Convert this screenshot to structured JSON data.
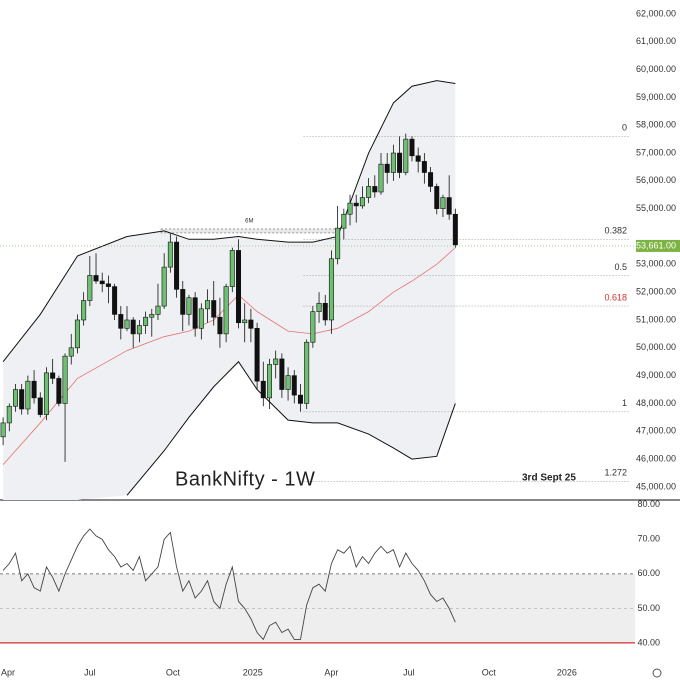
{
  "chart_data": {
    "type": "candlestick",
    "title": "BankNifty - 1W",
    "annotation": "3rd Sept 25",
    "xlim": [
      -0.5,
      102
    ],
    "xticks": [
      {
        "value": 0.8,
        "label": "Apr"
      },
      {
        "value": 14,
        "label": "Jul"
      },
      {
        "value": 27.4,
        "label": "Oct"
      },
      {
        "value": 40.3,
        "label": "2025"
      },
      {
        "value": 53,
        "label": "Apr"
      },
      {
        "value": 65.5,
        "label": "Jul"
      },
      {
        "value": 78.4,
        "label": "Oct"
      },
      {
        "value": 91,
        "label": "2026"
      }
    ],
    "ylim": [
      44530,
      62500
    ],
    "yticks": [
      {
        "value": 45000,
        "label": "45,000.00"
      },
      {
        "value": 46000,
        "label": "46,000.00"
      },
      {
        "value": 47000,
        "label": "47,000.00"
      },
      {
        "value": 48000,
        "label": "48,000.00"
      },
      {
        "value": 49000,
        "label": "49,000.00"
      },
      {
        "value": 50000,
        "label": "50,000.00"
      },
      {
        "value": 51000,
        "label": "51,000.00"
      },
      {
        "value": 52000,
        "label": "52,000.00"
      },
      {
        "value": 53000,
        "label": "53,000.00"
      },
      {
        "value": 55000,
        "label": "55,000.00"
      },
      {
        "value": 56000,
        "label": "56,000.00"
      },
      {
        "value": 57000,
        "label": "57,000.00"
      },
      {
        "value": 58000,
        "label": "58,000.00"
      },
      {
        "value": 59000,
        "label": "59,000.00"
      },
      {
        "value": 60000,
        "label": "60,000.00"
      },
      {
        "value": 61000,
        "label": "61,000.00"
      },
      {
        "value": 62000,
        "label": "62,000.00"
      }
    ],
    "up_color": "#6fbf73",
    "down_color": "#111111",
    "open": [
      46800,
      47300,
      47900,
      48500,
      47800,
      48800,
      48200,
      47600,
      49100,
      48900,
      48000,
      49700,
      50000,
      51000,
      51700,
      52600,
      52400,
      52300,
      52200,
      51200,
      50700,
      51000,
      50500,
      50800,
      51100,
      51200,
      51500,
      52900,
      53800,
      52100,
      51200,
      51800,
      50700,
      51400,
      51700,
      51100,
      50500,
      52200,
      53500,
      50900,
      51000,
      50700,
      48800,
      48200,
      49400,
      49600,
      48500,
      49000,
      48300,
      48000,
      50200,
      51300,
      51600,
      51000,
      53200,
      54300,
      54800,
      55200,
      55100,
      55400,
      55800,
      55600,
      56600,
      56300,
      57000,
      56300,
      57500,
      56900,
      56700,
      56300,
      55800,
      55000,
      55400,
      54800
    ],
    "high": [
      47500,
      48000,
      48700,
      48700,
      49000,
      49200,
      48400,
      49300,
      49600,
      49000,
      49800,
      50500,
      51200,
      52000,
      53300,
      53400,
      52700,
      52600,
      52300,
      51500,
      51500,
      51100,
      51000,
      51300,
      51400,
      52300,
      53400,
      54100,
      54000,
      52400,
      51900,
      52000,
      51600,
      52100,
      52400,
      51800,
      52300,
      53600,
      53900,
      51600,
      51400,
      50900,
      49500,
      49600,
      49900,
      49800,
      49300,
      49200,
      48700,
      50300,
      51500,
      52000,
      51900,
      53500,
      55100,
      55000,
      55500,
      55500,
      55800,
      56100,
      56200,
      57000,
      57000,
      57300,
      57600,
      57700,
      57600,
      57200,
      57000,
      56500,
      55900,
      55500,
      56200,
      55000
    ],
    "low": [
      46500,
      47000,
      47700,
      47600,
      47600,
      48000,
      47500,
      47400,
      48700,
      47900,
      45900,
      49400,
      49800,
      50800,
      51500,
      52300,
      52000,
      51600,
      51000,
      50300,
      50600,
      50000,
      50200,
      50500,
      50400,
      51000,
      51400,
      52700,
      51800,
      50600,
      50800,
      50400,
      50300,
      50900,
      50800,
      50000,
      50200,
      52000,
      50700,
      50200,
      50200,
      48500,
      47900,
      47800,
      48900,
      48200,
      48100,
      48000,
      47700,
      47800,
      50000,
      50900,
      50800,
      50500,
      53000,
      53900,
      54400,
      54500,
      55000,
      55200,
      55400,
      55500,
      55900,
      56000,
      56100,
      56200,
      56700,
      56300,
      55900,
      55600,
      54800,
      54700,
      54600,
      53600
    ],
    "close": [
      47300,
      47900,
      48500,
      47800,
      48800,
      48200,
      47600,
      49100,
      48900,
      48000,
      49700,
      50000,
      51000,
      51700,
      52600,
      52400,
      52300,
      52200,
      51200,
      50700,
      51000,
      50500,
      50800,
      51100,
      51200,
      51500,
      52900,
      53800,
      52100,
      51200,
      51800,
      50700,
      51400,
      51700,
      51100,
      50500,
      52200,
      53500,
      50900,
      51000,
      50700,
      48800,
      48200,
      49400,
      49600,
      48500,
      49000,
      48300,
      48000,
      50200,
      51300,
      51600,
      51000,
      53200,
      54300,
      54800,
      55200,
      55100,
      55400,
      55800,
      55600,
      56600,
      56300,
      57000,
      56300,
      57500,
      56900,
      56700,
      56300,
      55800,
      55000,
      55400,
      54800,
      53700
    ],
    "bands": {
      "x": [
        0,
        6,
        12,
        20,
        26,
        30,
        34,
        38,
        41,
        46,
        50,
        54,
        59,
        63,
        66,
        70,
        73
      ],
      "upper": [
        49500,
        51200,
        53300,
        54000,
        54200,
        53900,
        53900,
        54000,
        53900,
        53800,
        53800,
        54000,
        57000,
        58800,
        59400,
        59600,
        59500
      ],
      "middle": [
        45800,
        47300,
        48900,
        49900,
        50400,
        50600,
        51000,
        51900,
        51300,
        50600,
        50500,
        50700,
        51300,
        52000,
        52400,
        53000,
        53600
      ],
      "lower": [
        null,
        null,
        null,
        44700,
        46300,
        47500,
        48600,
        49500,
        48500,
        47400,
        47300,
        47300,
        46900,
        46400,
        46000,
        46100,
        48000
      ],
      "band_color": "#111111",
      "middle_color": "#e57373",
      "fill": "#eef0f3"
    },
    "current_price": {
      "value": 53661,
      "label": "53,661.00",
      "color": "#7cb342"
    },
    "fib_levels": [
      {
        "label": "0",
        "price": 57600,
        "color": "#333333"
      },
      {
        "label": "0.382",
        "price": 53900,
        "color": "#333333"
      },
      {
        "label": "0.5",
        "price": 52600,
        "color": "#333333"
      },
      {
        "label": "0.618",
        "price": 51500,
        "color": "#d32f2f"
      },
      {
        "label": "1",
        "price": 47700,
        "color": "#333333"
      },
      {
        "label": "1.272",
        "price": 45200,
        "color": "#333333"
      }
    ],
    "fib_start": 48.5,
    "range_box": {
      "label": "6M",
      "x": [
        25.5,
        54
      ],
      "price": 54200
    },
    "rsi": {
      "ylim": [
        33.6,
        81.4
      ],
      "yticks": [
        {
          "value": 40,
          "label": "40.00"
        },
        {
          "value": 50,
          "label": "50.00"
        },
        {
          "value": 60,
          "label": "60.00"
        },
        {
          "value": 70,
          "label": "70.00"
        },
        {
          "value": 80,
          "label": "80.00"
        }
      ],
      "upper_band": 60,
      "lower_band": 40,
      "color": "#444444",
      "values": [
        61,
        63,
        66,
        58,
        60,
        56,
        55,
        62,
        59,
        55,
        60,
        64,
        68,
        71,
        73,
        71,
        70,
        67,
        65,
        62,
        63,
        61,
        65,
        58,
        60,
        62,
        70,
        72,
        62,
        55,
        58,
        53,
        55,
        58,
        52,
        50,
        57,
        62,
        52,
        50,
        47,
        43,
        41,
        45,
        46,
        43,
        44,
        41,
        41,
        51,
        56,
        57,
        55,
        63,
        67,
        66,
        68,
        62,
        65,
        63,
        66,
        68,
        66,
        67,
        62,
        66,
        63,
        61,
        58,
        54,
        52,
        53,
        50,
        46
      ]
    }
  }
}
